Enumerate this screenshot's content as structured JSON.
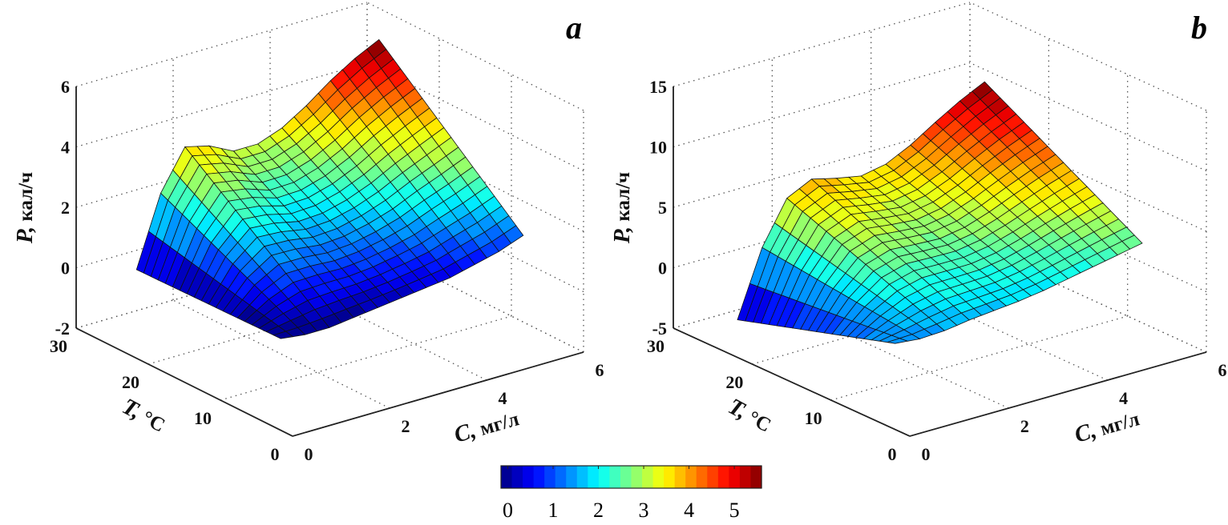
{
  "chart_data": [
    {
      "type": "surface",
      "panel_label": "a",
      "xlabel": "C, мг/л",
      "ylabel": "T, °C",
      "zlabel": "P, кал/ч",
      "xlabel_parts": [
        "C",
        ", мг/л"
      ],
      "ylabel_parts": [
        "T",
        ", °C"
      ],
      "zlabel_parts": [
        "P",
        ", кал/ч"
      ],
      "xlim": [
        0,
        6
      ],
      "ylim": [
        0,
        30
      ],
      "zlim": [
        -2,
        6
      ],
      "xticks": [
        0,
        2,
        4,
        6
      ],
      "yticks": [
        0,
        10,
        20,
        30
      ],
      "zticks": [
        -2,
        0,
        2,
        4,
        6
      ],
      "grid": true,
      "C": [
        0.5,
        1,
        1.5,
        2,
        2.5,
        3,
        3.5,
        4,
        4.5,
        5,
        5.5
      ],
      "T": [
        5,
        7,
        9,
        11,
        13,
        15,
        17,
        19,
        21,
        23,
        25
      ],
      "P": [
        [
          0.4,
          0.3,
          0.3,
          0.4,
          0.5,
          0.6,
          0.7,
          0.8,
          1.0,
          1.2,
          1.5
        ],
        [
          0.39,
          0.53,
          0.66,
          0.73,
          0.78,
          0.87,
          0.99,
          1.13,
          1.37,
          1.6,
          1.91
        ],
        [
          0.38,
          0.76,
          1.02,
          1.06,
          1.06,
          1.14,
          1.28,
          1.46,
          1.74,
          2.0,
          2.32
        ],
        [
          0.37,
          0.99,
          1.38,
          1.39,
          1.34,
          1.41,
          1.57,
          1.79,
          2.11,
          2.4,
          2.73
        ],
        [
          0.36,
          1.22,
          1.74,
          1.72,
          1.62,
          1.68,
          1.86,
          2.12,
          2.48,
          2.8,
          3.14
        ],
        [
          0.35,
          1.45,
          2.1,
          2.05,
          1.9,
          1.95,
          2.15,
          2.45,
          2.85,
          3.2,
          3.55
        ],
        [
          0.34,
          1.68,
          2.46,
          2.38,
          2.18,
          2.22,
          2.44,
          2.78,
          3.22,
          3.6,
          3.96
        ],
        [
          0.33,
          1.91,
          2.82,
          2.71,
          2.46,
          2.49,
          2.73,
          3.11,
          3.59,
          4.0,
          4.37
        ],
        [
          0.32,
          2.14,
          3.18,
          3.04,
          2.74,
          2.76,
          3.02,
          3.44,
          3.96,
          4.4,
          4.78
        ],
        [
          0.31,
          2.37,
          3.54,
          3.37,
          3.02,
          3.03,
          3.31,
          3.77,
          4.33,
          4.8,
          5.19
        ],
        [
          0.3,
          2.6,
          3.9,
          3.7,
          3.3,
          3.3,
          3.6,
          4.1,
          4.7,
          5.2,
          5.6
        ]
      ]
    },
    {
      "type": "surface",
      "panel_label": "b",
      "xlabel": "C, мг/л",
      "ylabel": "T, °C",
      "zlabel": "P, кал/ч",
      "xlabel_parts": [
        "C",
        ", мг/л"
      ],
      "ylabel_parts": [
        "T",
        ", °C"
      ],
      "zlabel_parts": [
        "P",
        ", кал/ч"
      ],
      "xlim": [
        0,
        6
      ],
      "ylim": [
        0,
        30
      ],
      "zlim": [
        -5,
        15
      ],
      "xticks": [
        0,
        2,
        4,
        6
      ],
      "yticks": [
        0,
        10,
        20,
        30
      ],
      "zticks": [
        -5,
        0,
        5,
        10,
        15
      ],
      "grid": true,
      "C": [
        0.5,
        1,
        1.5,
        2,
        2.5,
        3,
        3.5,
        4,
        4.5,
        5,
        5.5
      ],
      "T": [
        5,
        7,
        9,
        11,
        13,
        15,
        17,
        19,
        21,
        23,
        25
      ],
      "P": [
        [
          0.6,
          0.4,
          0.5,
          0.8,
          1.0,
          1.2,
          1.5,
          1.9,
          2.3,
          2.7,
          3.1
        ],
        [
          0.2,
          0.56,
          1.0,
          1.37,
          1.5,
          1.64,
          1.95,
          2.41,
          2.9,
          3.38,
          3.84
        ],
        [
          -0.2,
          0.72,
          1.5,
          1.94,
          2.0,
          2.08,
          2.4,
          2.92,
          3.5,
          4.06,
          4.58
        ],
        [
          -0.6,
          0.88,
          2.0,
          2.51,
          2.5,
          2.52,
          2.85,
          3.43,
          4.1,
          4.74,
          5.32
        ],
        [
          -1.0,
          1.04,
          2.5,
          3.08,
          3.0,
          2.96,
          3.3,
          3.94,
          4.7,
          5.42,
          6.06
        ],
        [
          -1.4,
          1.2,
          3.0,
          3.65,
          3.5,
          3.4,
          3.75,
          4.45,
          5.3,
          6.1,
          6.8
        ],
        [
          -1.8,
          1.36,
          3.5,
          4.22,
          4.0,
          3.84,
          4.2,
          4.96,
          5.9,
          6.78,
          7.54
        ],
        [
          -2.2,
          1.52,
          4.0,
          4.79,
          4.5,
          4.28,
          4.65,
          5.47,
          6.5,
          7.46,
          8.28
        ],
        [
          -2.6,
          1.68,
          4.5,
          5.36,
          5.0,
          4.72,
          5.1,
          5.98,
          7.1,
          8.14,
          9.02
        ],
        [
          -3.0,
          1.84,
          5.0,
          5.93,
          5.5,
          5.16,
          5.55,
          6.49,
          7.7,
          8.82,
          9.76
        ],
        [
          -3.4,
          2.0,
          5.5,
          6.5,
          6.0,
          5.6,
          6.0,
          7.0,
          8.3,
          9.5,
          10.5
        ]
      ]
    }
  ],
  "colorbar": {
    "colormap": "jet",
    "ticks": [
      0,
      1,
      2,
      3,
      4,
      5
    ],
    "range": [
      -0.15,
      5.6
    ]
  }
}
